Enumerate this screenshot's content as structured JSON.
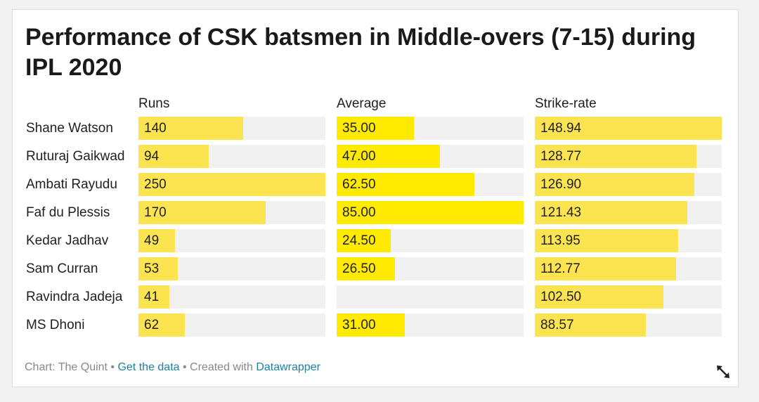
{
  "chart_data": {
    "type": "bar",
    "title": "Performance of CSK batsmen in Middle-overs (7-15) during IPL 2020",
    "categories": [
      "Shane Watson",
      "Ruturaj Gaikwad",
      "Ambati Rayudu",
      "Faf du Plessis",
      "Kedar Jadhav",
      "Sam Curran",
      "Ravindra Jadeja",
      "MS Dhoni"
    ],
    "series": [
      {
        "name": "Runs",
        "values": [
          140,
          94,
          250,
          170,
          49,
          53,
          41,
          62
        ],
        "labels": [
          "140",
          "94",
          "250",
          "170",
          "49",
          "53",
          "41",
          "62"
        ],
        "max": 250
      },
      {
        "name": "Average",
        "values": [
          35.0,
          47.0,
          62.5,
          85.0,
          24.5,
          26.5,
          null,
          31.0
        ],
        "labels": [
          "35.00",
          "47.00",
          "62.50",
          "85.00",
          "24.50",
          "26.50",
          "",
          "31.00"
        ],
        "max": 85
      },
      {
        "name": "Strike-rate",
        "values": [
          148.94,
          128.77,
          126.9,
          121.43,
          113.95,
          112.77,
          102.5,
          88.57
        ],
        "labels": [
          "148.94",
          "128.77",
          "126.90",
          "121.43",
          "113.95",
          "112.77",
          "102.50",
          "88.57"
        ],
        "max": 148.94
      }
    ],
    "colors": {
      "bar_runs": "#fce450",
      "bar_average": "#ffea00",
      "bar_strike": "#fce450",
      "track": "#f1f1f1"
    }
  },
  "footer": {
    "prefix": "Chart: The Quint",
    "sep1": " • ",
    "get_data": "Get the data",
    "sep2": " • ",
    "created_with": "Created with ",
    "datawrapper": "Datawrapper"
  },
  "icons": {
    "expand": "expand-arrows-icon"
  }
}
